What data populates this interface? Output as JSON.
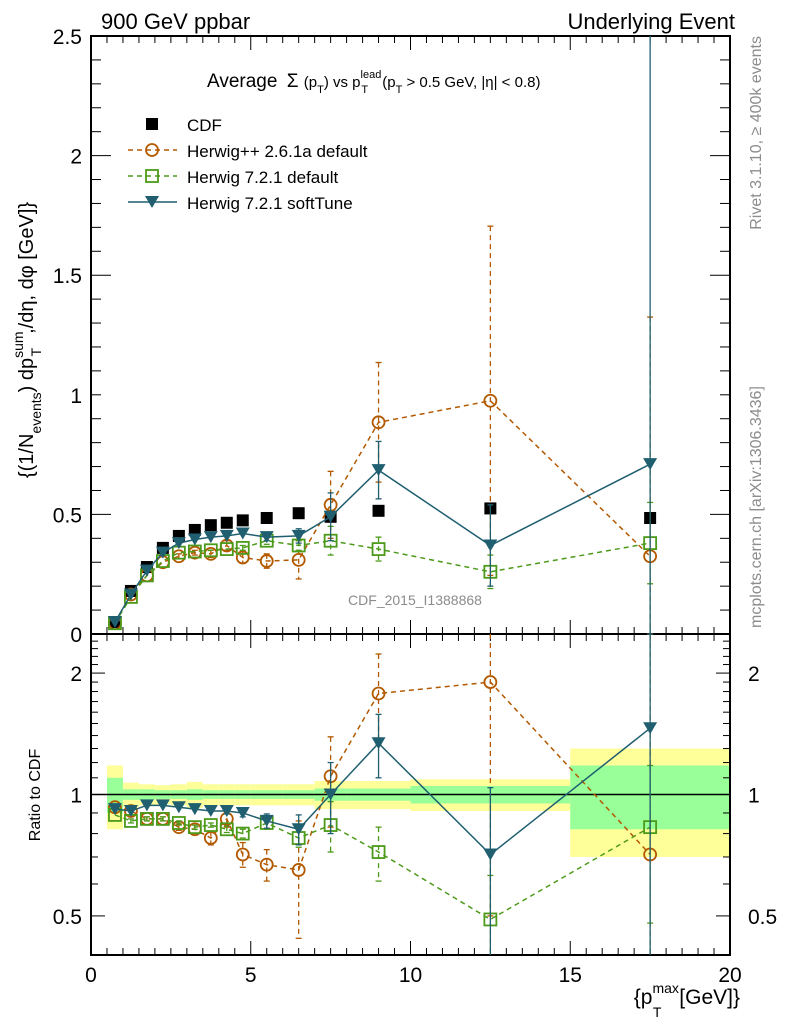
{
  "header": {
    "left_label": "900 GeV ppbar",
    "right_label": "Underlying Event"
  },
  "side_labels": {
    "rivet": "Rivet 3.1.10, ≥ 400k events",
    "mcplots": "mcplots.cern.ch [arXiv:1306.3436]"
  },
  "watermark": "CDF_2015_I1388868",
  "chart_data": [
    {
      "type": "line",
      "panel": "main",
      "title": "Average Σ(p_T) vs p_T^lead (p_T > 0.5 GeV, |η| < 0.8)",
      "title_parts": {
        "a": "Average",
        "sigma": "Σ",
        "b": "(p",
        "b_sub": "T",
        "c": ") vs p",
        "c_sup": "lead",
        "c_sub": "T",
        "d": " (p",
        "d_sub": "T",
        "e": " > 0.5 GeV, |η| < 0.8)"
      },
      "ylabel": "{(1/N_events) dp_T^sum/dη, dφ [GeV]}",
      "ylabel_parts": {
        "a": "{(1/N",
        "a_sub": "events",
        "b": ") dp",
        "b_sup": "sum",
        "b_sub": "T",
        "c": ",/dη, dφ [GeV]}"
      },
      "xlim": [
        0,
        20
      ],
      "ylim": [
        0,
        2.5
      ],
      "yticks": [
        "0",
        "0.5",
        "1",
        "1.5",
        "2",
        "2.5"
      ],
      "x": [
        0.75,
        1.25,
        1.75,
        2.25,
        2.75,
        3.25,
        3.75,
        4.25,
        4.75,
        5.5,
        6.5,
        7.5,
        9,
        12.5,
        17.5
      ],
      "series": [
        {
          "name": "CDF",
          "style": "data",
          "color": "#000000",
          "marker": "square-filled",
          "values": [
            0.05,
            0.18,
            0.28,
            0.36,
            0.41,
            0.435,
            0.455,
            0.465,
            0.475,
            0.485,
            0.505,
            0.49,
            0.515,
            0.525,
            0.485
          ],
          "errors": [
            0.005,
            0.005,
            0.005,
            0.005,
            0.005,
            0.005,
            0.005,
            0.005,
            0.005,
            0.005,
            0.005,
            0.005,
            0.005,
            0.005,
            0.01
          ]
        },
        {
          "name": "Herwig++ 2.6.1a default",
          "style": "dashed",
          "color": "#b35900",
          "marker": "circle-open",
          "values": [
            0.045,
            0.165,
            0.245,
            0.3,
            0.325,
            0.34,
            0.335,
            0.37,
            0.32,
            0.305,
            0.31,
            0.54,
            0.885,
            0.975,
            0.325
          ],
          "errors": [
            0.005,
            0.005,
            0.005,
            0.005,
            0.01,
            0.01,
            0.015,
            0.02,
            0.025,
            0.03,
            0.08,
            0.14,
            0.25,
            0.73,
            1.0
          ]
        },
        {
          "name": "Herwig 7.2.1 default",
          "style": "dashed",
          "color": "#4c9a1a",
          "marker": "square-open",
          "values": [
            0.045,
            0.155,
            0.245,
            0.305,
            0.34,
            0.345,
            0.35,
            0.355,
            0.36,
            0.39,
            0.37,
            0.39,
            0.355,
            0.26,
            0.38
          ],
          "errors": [
            0.005,
            0.005,
            0.005,
            0.005,
            0.005,
            0.005,
            0.005,
            0.005,
            0.01,
            0.015,
            0.02,
            0.06,
            0.05,
            0.07,
            0.17
          ]
        },
        {
          "name": "Herwig 7.2.1 softTune",
          "style": "solid",
          "color": "#1f5f70",
          "marker": "triangle-down-filled",
          "values": [
            0.05,
            0.165,
            0.265,
            0.34,
            0.38,
            0.395,
            0.405,
            0.41,
            0.42,
            0.405,
            0.41,
            0.49,
            0.685,
            0.37,
            0.71
          ],
          "errors": [
            0.005,
            0.005,
            0.005,
            0.005,
            0.005,
            0.005,
            0.005,
            0.005,
            0.005,
            0.015,
            0.03,
            0.1,
            0.12,
            0.17,
            2.0
          ]
        }
      ],
      "legend": {
        "placement": "top-left"
      }
    },
    {
      "type": "line",
      "panel": "ratio",
      "ylabel": "Ratio to CDF",
      "xlabel": "{p_T^max [GeV]}",
      "xlabel_parts": {
        "a": "{p",
        "a_sup": "max",
        "a_sub": "T",
        "b": " [GeV]}"
      },
      "yscale": "log",
      "ylim": [
        0.4,
        2.5
      ],
      "yticks": [
        "0.5",
        "1",
        "2"
      ],
      "xticks": [
        "0",
        "5",
        "10",
        "15",
        "20"
      ],
      "xlim": [
        0,
        20
      ],
      "reference_line": 1,
      "bands": {
        "bin_edges": [
          0.5,
          1,
          1.5,
          2,
          2.5,
          3,
          3.5,
          4,
          4.5,
          5,
          6,
          7,
          8,
          10,
          15,
          20
        ],
        "stat_color": "#99ff99",
        "total_color": "#ffff99",
        "stat": [
          0.1,
          0.03,
          0.03,
          0.025,
          0.025,
          0.03,
          0.025,
          0.025,
          0.025,
          0.025,
          0.025,
          0.035,
          0.035,
          0.05,
          0.18
        ],
        "total": [
          0.18,
          0.07,
          0.06,
          0.055,
          0.06,
          0.075,
          0.06,
          0.06,
          0.06,
          0.06,
          0.06,
          0.08,
          0.08,
          0.09,
          0.3
        ]
      },
      "x": [
        0.75,
        1.25,
        1.75,
        2.25,
        2.75,
        3.25,
        3.75,
        4.25,
        4.75,
        5.5,
        6.5,
        7.5,
        9,
        12.5,
        17.5
      ],
      "series": [
        {
          "name": "Herwig++ 2.6.1a default",
          "values": [
            0.93,
            0.91,
            0.87,
            0.87,
            0.83,
            0.82,
            0.78,
            0.87,
            0.71,
            0.67,
            0.65,
            1.11,
            1.78,
            1.9,
            0.71
          ],
          "errors": [
            0.01,
            0.01,
            0.01,
            0.01,
            0.015,
            0.02,
            0.03,
            0.04,
            0.05,
            0.06,
            0.21,
            0.28,
            0.45,
            1.4,
            2.0
          ]
        },
        {
          "name": "Herwig 7.2.1 default",
          "values": [
            0.89,
            0.86,
            0.87,
            0.87,
            0.85,
            0.83,
            0.84,
            0.82,
            0.8,
            0.85,
            0.78,
            0.84,
            0.72,
            0.49,
            0.83
          ],
          "errors": [
            0.01,
            0.01,
            0.01,
            0.01,
            0.01,
            0.01,
            0.01,
            0.015,
            0.02,
            0.03,
            0.04,
            0.12,
            0.11,
            0.14,
            0.35
          ]
        },
        {
          "name": "Herwig 7.2.1 softTune",
          "values": [
            0.92,
            0.91,
            0.94,
            0.94,
            0.93,
            0.92,
            0.91,
            0.91,
            0.9,
            0.86,
            0.82,
            1.0,
            1.34,
            0.71,
            1.46
          ],
          "errors": [
            0.01,
            0.01,
            0.01,
            0.01,
            0.01,
            0.01,
            0.01,
            0.015,
            0.02,
            0.035,
            0.07,
            0.2,
            0.24,
            0.33,
            2.0
          ]
        }
      ]
    }
  ]
}
